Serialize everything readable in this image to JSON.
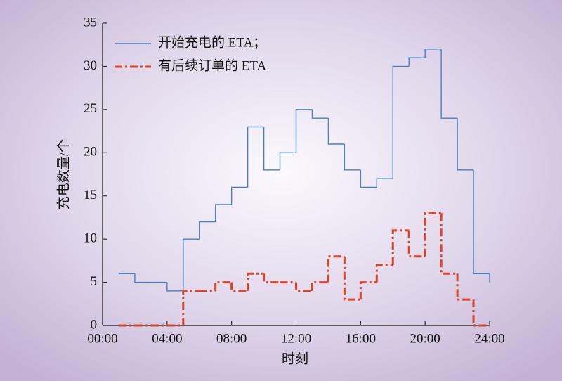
{
  "chart_data": {
    "type": "step",
    "xlabel": "时刻",
    "ylabel": "充电数量/个",
    "x": [
      1,
      2,
      3,
      4,
      5,
      6,
      7,
      8,
      9,
      10,
      11,
      12,
      13,
      14,
      15,
      16,
      17,
      18,
      19,
      20,
      21,
      22,
      23,
      24
    ],
    "series": [
      {
        "name": "开始充电的 ETA；",
        "color": "#4a7ec4",
        "style": "solid",
        "values": [
          6,
          5,
          5,
          4,
          10,
          12,
          14,
          16,
          23,
          18,
          20,
          25,
          24,
          21,
          18,
          16,
          17,
          30,
          31,
          32,
          24,
          18,
          6,
          5
        ]
      },
      {
        "name": "有后续订单的 ETA",
        "color": "#d8452a",
        "style": "dashdot",
        "values": [
          0,
          0,
          0,
          0,
          4,
          4,
          5,
          4,
          6,
          5,
          5,
          4,
          5,
          8,
          3,
          5,
          7,
          11,
          8,
          13,
          6,
          3,
          0,
          0
        ]
      }
    ],
    "xlim": [
      0,
      24
    ],
    "xticks": [
      {
        "value": 0,
        "label": "00:00"
      },
      {
        "value": 4,
        "label": "04:00"
      },
      {
        "value": 8,
        "label": "08:00"
      },
      {
        "value": 12,
        "label": "12:00"
      },
      {
        "value": 16,
        "label": "16:00"
      },
      {
        "value": 20,
        "label": "20:00"
      },
      {
        "value": 24,
        "label": "24:00"
      }
    ],
    "ylim": [
      0,
      35
    ],
    "yticks": [
      0,
      5,
      10,
      15,
      20,
      25,
      30,
      35
    ],
    "legend": "upper left"
  }
}
